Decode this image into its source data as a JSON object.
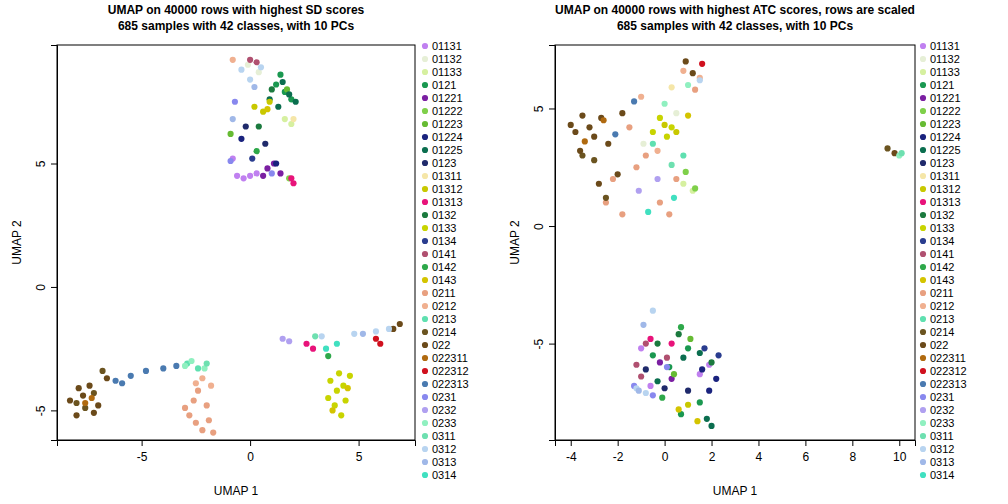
{
  "chart_data": [
    {
      "type": "scatter",
      "title": "UMAP on 40000 rows with highest SD scores",
      "subtitle": "685 samples with 42 classes, with 10 PCs",
      "x_label": "UMAP 1",
      "y_label": "UMAP 2",
      "xlim": [
        -8.9,
        7.6
      ],
      "ylim": [
        -6.2,
        9.8
      ],
      "xticks": [
        -5,
        0,
        5
      ],
      "yticks": [
        -5,
        0,
        5
      ],
      "legend": "right",
      "marker": "circle",
      "series": [
        {
          "name": "01131",
          "color": "#c080f0",
          "x": [
            -0.6,
            -0.3,
            0.0,
            0.3,
            -0.8
          ],
          "y": [
            4.5,
            4.4,
            4.5,
            4.6,
            5.2
          ]
        },
        {
          "name": "01132",
          "color": "#e6efd6",
          "x": [
            -0.1,
            0.4
          ],
          "y": [
            9.0,
            8.7
          ]
        },
        {
          "name": "01133",
          "color": "#d6f0a0",
          "x": [
            1.6,
            1.9
          ],
          "y": [
            6.8,
            6.6
          ]
        },
        {
          "name": "0121",
          "color": "#1a9850",
          "x": [
            1.2,
            1.6,
            1.9,
            1.4
          ],
          "y": [
            8.2,
            7.9,
            7.6,
            8.6
          ]
        },
        {
          "name": "01221",
          "color": "#7b1fa2",
          "x": [
            0.8,
            1.1,
            1.4,
            0.6
          ],
          "y": [
            4.8,
            5.0,
            4.6,
            4.5
          ]
        },
        {
          "name": "01222",
          "color": "#7fd04a",
          "x": [
            1.8
          ],
          "y": [
            4.4
          ]
        },
        {
          "name": "01223",
          "color": "#66bb33",
          "x": [
            -0.9,
            1.7
          ],
          "y": [
            6.2,
            8.0
          ]
        },
        {
          "name": "01224",
          "color": "#1a237e",
          "x": [
            -0.4,
            1.2
          ],
          "y": [
            6.0,
            5.0
          ]
        },
        {
          "name": "01225",
          "color": "#0b6e4f",
          "x": [
            1.3,
            1.8,
            2.1,
            0.9,
            1.5
          ],
          "y": [
            7.3,
            7.8,
            7.5,
            7.6,
            8.3
          ]
        },
        {
          "name": "0123",
          "color": "#1f2a6b",
          "x": [
            0.7,
            -0.2
          ],
          "y": [
            5.8,
            6.5
          ]
        },
        {
          "name": "01311",
          "color": "#f5e6a8",
          "x": [
            2.0
          ],
          "y": [
            6.8
          ]
        },
        {
          "name": "01312",
          "color": "#c8c800",
          "x": [
            0.2,
            0.6,
            0.9
          ],
          "y": [
            7.3,
            7.1,
            7.5
          ]
        },
        {
          "name": "01313",
          "color": "#e8137a",
          "x": [
            1.9,
            2.0,
            2.6,
            2.9
          ],
          "y": [
            4.4,
            4.2,
            -2.3,
            -2.5
          ]
        },
        {
          "name": "0132",
          "color": "#1b7a3e",
          "x": [
            1.0,
            0.4
          ],
          "y": [
            8.0,
            6.5
          ]
        },
        {
          "name": "0133",
          "color": "#c8d400",
          "x": [
            3.7,
            4.0,
            4.3,
            4.6,
            3.9,
            4.2,
            3.6,
            4.4,
            4.1
          ],
          "y": [
            -3.8,
            -4.2,
            -4.0,
            -3.6,
            -4.8,
            -5.2,
            -4.5,
            -4.6,
            -3.5
          ]
        },
        {
          "name": "0134",
          "color": "#2a3d8f",
          "x": [
            0.1
          ],
          "y": [
            5.2
          ]
        },
        {
          "name": "0141",
          "color": "#b05070",
          "x": [
            0.3,
            0.0
          ],
          "y": [
            9.1,
            9.2
          ]
        },
        {
          "name": "0142",
          "color": "#2ea84a",
          "x": [
            0.3,
            3.6
          ],
          "y": [
            5.5,
            -2.8
          ]
        },
        {
          "name": "0143",
          "color": "#d4c400",
          "x": [
            0.8,
            3.8,
            4.5
          ],
          "y": [
            7.2,
            -5.0,
            -4.1
          ]
        },
        {
          "name": "0211",
          "color": "#e8a080",
          "x": [
            -2.8,
            -2.5,
            -2.2,
            -1.9,
            -2.6,
            -2.0,
            -2.4,
            -1.7,
            -3.0
          ],
          "y": [
            -5.2,
            -5.5,
            -5.8,
            -5.4,
            -4.6,
            -4.8,
            -4.2,
            -5.9,
            -4.9
          ]
        },
        {
          "name": "0212",
          "color": "#f0b090",
          "x": [
            -2.2,
            -1.8,
            -2.5,
            -0.8
          ],
          "y": [
            -3.7,
            -4.0,
            -3.9,
            9.2
          ]
        },
        {
          "name": "0213",
          "color": "#5fe0b0",
          "x": [
            -2.9,
            -2.4
          ],
          "y": [
            -3.1,
            -3.3
          ]
        },
        {
          "name": "0214",
          "color": "#6b5420",
          "x": [
            -8.0,
            -7.6,
            -7.2,
            -6.8
          ],
          "y": [
            -4.7,
            -4.9,
            -4.3,
            -3.4
          ]
        },
        {
          "name": "022",
          "color": "#6b4a1a",
          "x": [
            -8.3,
            -8.0,
            -7.7,
            -7.4,
            -7.0,
            -6.6,
            -7.9,
            -7.2,
            6.6,
            6.9
          ],
          "y": [
            -4.6,
            -5.2,
            -4.4,
            -4.0,
            -4.8,
            -3.7,
            -4.1,
            -5.1,
            -1.7,
            -1.5
          ]
        },
        {
          "name": "022311",
          "color": "#b06a10",
          "x": [
            -7.6,
            -7.3
          ],
          "y": [
            -4.7,
            -4.5
          ]
        },
        {
          "name": "022312",
          "color": "#d0101e",
          "x": [
            5.8,
            6.0
          ],
          "y": [
            -2.1,
            -2.3
          ]
        },
        {
          "name": "022313",
          "color": "#4a7ab0",
          "x": [
            -6.2,
            -5.5,
            -4.8,
            -4.0,
            -3.4,
            -5.9
          ],
          "y": [
            -3.8,
            -3.6,
            -3.4,
            -3.3,
            -3.2,
            -3.9
          ]
        },
        {
          "name": "0231",
          "color": "#8888ee",
          "x": [
            -0.7,
            -0.9,
            1.0
          ],
          "y": [
            7.5,
            5.1,
            4.6
          ]
        },
        {
          "name": "0232",
          "color": "#b0a0f0",
          "x": [
            1.8,
            1.5
          ],
          "y": [
            -2.2,
            -2.1
          ]
        },
        {
          "name": "0233",
          "color": "#90f0c0",
          "x": [
            -3.0,
            -2.7,
            -2.1
          ],
          "y": [
            -3.2,
            -3.0,
            -3.3
          ]
        },
        {
          "name": "0311",
          "color": "#6ee0b0",
          "x": [
            -2.0,
            3.0
          ],
          "y": [
            -3.1,
            -2.0
          ]
        },
        {
          "name": "0312",
          "color": "#b8d4f0",
          "x": [
            -0.4,
            0.0,
            0.5,
            3.3,
            4.8,
            5.8,
            6.4
          ],
          "y": [
            8.8,
            8.4,
            8.9,
            -2.0,
            -1.9,
            -1.8,
            -1.7
          ]
        },
        {
          "name": "0313",
          "color": "#a0b8e8",
          "x": [
            0.2,
            -0.8,
            5.2
          ],
          "y": [
            8.1,
            6.8,
            -1.9
          ]
        },
        {
          "name": "0314",
          "color": "#40e0c0",
          "x": [
            4.0,
            3.5
          ],
          "y": [
            -2.3,
            -2.5
          ]
        }
      ]
    },
    {
      "type": "scatter",
      "title": "UMAP on 40000 rows with highest ATC scores, rows are scaled",
      "subtitle": "685 samples with 42 classes, with 10 PCs",
      "x_label": "UMAP 1",
      "y_label": "UMAP 2",
      "xlim": [
        -4.67,
        10.67
      ],
      "ylim": [
        -9.1,
        7.7
      ],
      "xticks": [
        -4,
        -2,
        0,
        2,
        4,
        6,
        8,
        10
      ],
      "yticks": [
        -5,
        0,
        5
      ],
      "legend": "right",
      "marker": "circle",
      "series": [
        {
          "name": "01131",
          "color": "#c080f0",
          "x": [
            -1.0,
            -0.6,
            1.5,
            1.9
          ],
          "y": [
            -5.2,
            -6.8,
            -6.3,
            -5.9
          ]
        },
        {
          "name": "01132",
          "color": "#e6efd6",
          "x": [
            0.5,
            -0.9
          ],
          "y": [
            4.8,
            3.5
          ]
        },
        {
          "name": "01133",
          "color": "#d6f0a0",
          "x": [
            0.8,
            1.2
          ],
          "y": [
            1.8,
            1.5
          ]
        },
        {
          "name": "0121",
          "color": "#1a9850",
          "x": [
            -0.5,
            0.2,
            1.0,
            1.5,
            0.7
          ],
          "y": [
            -5.5,
            -6.0,
            -5.2,
            -7.5,
            -8.0
          ]
        },
        {
          "name": "01221",
          "color": "#7b1fa2",
          "x": [
            0.3,
            -0.2
          ],
          "y": [
            -6.5,
            -5.8
          ]
        },
        {
          "name": "01222",
          "color": "#7fd04a",
          "x": [
            1.3,
            0.9
          ],
          "y": [
            1.6,
            2.3
          ]
        },
        {
          "name": "01223",
          "color": "#66bb33",
          "x": [
            0.4,
            1.1
          ],
          "y": [
            -6.3,
            -4.8
          ]
        },
        {
          "name": "01224",
          "color": "#1a237e",
          "x": [
            2.2,
            1.9,
            1.6
          ],
          "y": [
            -6.5,
            -7.0,
            -6.1
          ]
        },
        {
          "name": "01225",
          "color": "#0b6e4f",
          "x": [
            0.8,
            1.5,
            -0.3,
            1.8,
            2.0
          ],
          "y": [
            -5.6,
            -5.4,
            -6.6,
            -8.2,
            -8.5
          ]
        },
        {
          "name": "0123",
          "color": "#1f2a6b",
          "x": [
            0.0,
            -0.8,
            1.0
          ],
          "y": [
            -6.9,
            -6.1,
            -7.0
          ]
        },
        {
          "name": "01311",
          "color": "#f5e6a8",
          "x": [
            0.3
          ],
          "y": [
            5.9
          ]
        },
        {
          "name": "01312",
          "color": "#c8c800",
          "x": [
            0.0,
            0.5,
            1.0
          ],
          "y": [
            4.3,
            4.0,
            -7.6
          ]
        },
        {
          "name": "01313",
          "color": "#e8137a",
          "x": [
            -0.6,
            0.3
          ],
          "y": [
            -4.8,
            -5.0
          ]
        },
        {
          "name": "0132",
          "color": "#1b7a3e",
          "x": [
            -0.3,
            0.6,
            2.0
          ],
          "y": [
            -5.0,
            -4.6,
            -5.8
          ]
        },
        {
          "name": "0133",
          "color": "#c8d400",
          "x": [
            -0.2,
            0.3,
            0.1,
            -0.5
          ],
          "y": [
            4.6,
            4.2,
            3.8,
            4.0
          ]
        },
        {
          "name": "0134",
          "color": "#2a3d8f",
          "x": [
            1.7,
            2.3
          ],
          "y": [
            -5.2,
            -5.5
          ]
        },
        {
          "name": "0141",
          "color": "#b05070",
          "x": [
            -1.2,
            -1.0,
            -0.8,
            0.1
          ],
          "y": [
            -5.9,
            -6.4,
            -5.0,
            -5.6
          ]
        },
        {
          "name": "0142",
          "color": "#2ea84a",
          "x": [
            0.7,
            -0.1
          ],
          "y": [
            -4.3,
            -7.3
          ]
        },
        {
          "name": "0143",
          "color": "#d4c400",
          "x": [
            0.6,
            1.4,
            1.0
          ],
          "y": [
            -7.8,
            -8.3,
            4.7
          ]
        },
        {
          "name": "0211",
          "color": "#e8a080",
          "x": [
            -2.5,
            -1.8,
            -1.2,
            -0.8,
            -0.2,
            0.5,
            -1.5,
            -2.2,
            1.3,
            0.2
          ],
          "y": [
            1.0,
            0.5,
            2.5,
            3.0,
            1.0,
            2.0,
            4.2,
            2.0,
            5.8,
            0.5
          ]
        },
        {
          "name": "0212",
          "color": "#f0b090",
          "x": [
            -1.0,
            -0.3,
            1.5,
            0.8
          ],
          "y": [
            5.5,
            3.2,
            6.3,
            6.6
          ]
        },
        {
          "name": "0213",
          "color": "#5fe0b0",
          "x": [
            -0.5,
            0.8
          ],
          "y": [
            3.5,
            3.0
          ]
        },
        {
          "name": "0214",
          "color": "#6b5420",
          "x": [
            -3.5,
            -3.0,
            -2.5,
            9.5
          ],
          "y": [
            3.0,
            2.8,
            1.2,
            3.3
          ]
        },
        {
          "name": "022",
          "color": "#6b4a1a",
          "x": [
            -4.0,
            -3.8,
            -3.5,
            -3.2,
            -3.0,
            -2.7,
            -2.4,
            -2.0,
            -3.6,
            -2.8,
            -1.8,
            0.9,
            1.2,
            9.8
          ],
          "y": [
            4.3,
            4.0,
            4.7,
            4.2,
            3.8,
            4.6,
            3.5,
            2.2,
            3.2,
            1.8,
            4.8,
            7.0,
            6.5,
            3.1
          ]
        },
        {
          "name": "022311",
          "color": "#b06a10",
          "x": [
            -3.4,
            -2.6
          ],
          "y": [
            3.6,
            4.5
          ]
        },
        {
          "name": "022312",
          "color": "#d0101e",
          "x": [
            1.6
          ],
          "y": [
            6.9
          ]
        },
        {
          "name": "022313",
          "color": "#4a7ab0",
          "x": [
            -1.3,
            -2.1
          ],
          "y": [
            5.3,
            3.9
          ]
        },
        {
          "name": "0231",
          "color": "#8888ee",
          "x": [
            -1.3,
            -0.5,
            0.1
          ],
          "y": [
            -6.8,
            -7.2,
            -6.0
          ]
        },
        {
          "name": "0232",
          "color": "#b0a0f0",
          "x": [
            -1.1,
            -0.3
          ],
          "y": [
            1.5,
            2.0
          ]
        },
        {
          "name": "0233",
          "color": "#90f0c0",
          "x": [
            0.0,
            1.0,
            10.0
          ],
          "y": [
            5.2,
            6.0,
            3.0
          ]
        },
        {
          "name": "0311",
          "color": "#6ee0b0",
          "x": [
            0.3,
            10.1
          ],
          "y": [
            2.6,
            3.1
          ]
        },
        {
          "name": "0312",
          "color": "#b8d4f0",
          "x": [
            -1.2,
            -0.8,
            -0.5,
            1.5
          ],
          "y": [
            -6.9,
            -7.1,
            -3.6,
            6.2
          ]
        },
        {
          "name": "0313",
          "color": "#a0b8e8",
          "x": [
            -0.9,
            -1.1
          ],
          "y": [
            -4.2,
            -7.0
          ]
        },
        {
          "name": "0314",
          "color": "#40e0c0",
          "x": [
            -0.7,
            0.4
          ],
          "y": [
            0.6,
            1.2
          ]
        }
      ]
    }
  ]
}
